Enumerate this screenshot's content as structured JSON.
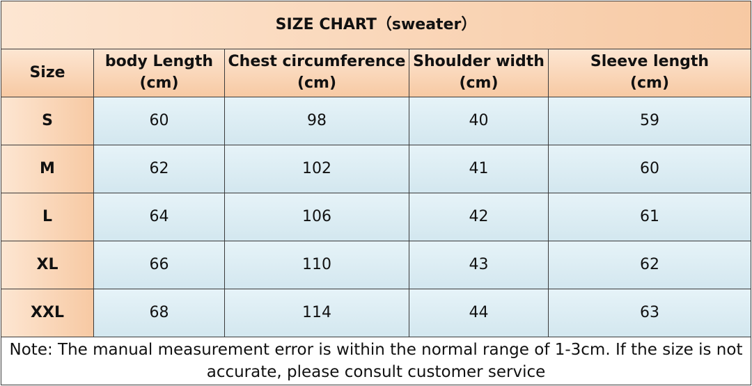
{
  "title": "SIZE CHART（sweater）",
  "table": {
    "headers": [
      [
        "Size"
      ],
      [
        "body Length",
        "(cm)"
      ],
      [
        "Chest circumference",
        "(cm)"
      ],
      [
        "Shoulder width",
        "(cm)"
      ],
      [
        "Sleeve length",
        "(cm)"
      ]
    ],
    "rows": [
      [
        "S",
        60,
        98,
        40,
        59
      ],
      [
        "M",
        62,
        102,
        41,
        60
      ],
      [
        "L",
        64,
        106,
        42,
        61
      ],
      [
        "XL",
        66,
        110,
        43,
        62
      ],
      [
        "XXL",
        68,
        114,
        44,
        63
      ]
    ]
  },
  "note": [
    "Note: The manual measurement error is within the normal range of 1-3cm. If the size is not",
    "accurate, please consult customer service"
  ]
}
